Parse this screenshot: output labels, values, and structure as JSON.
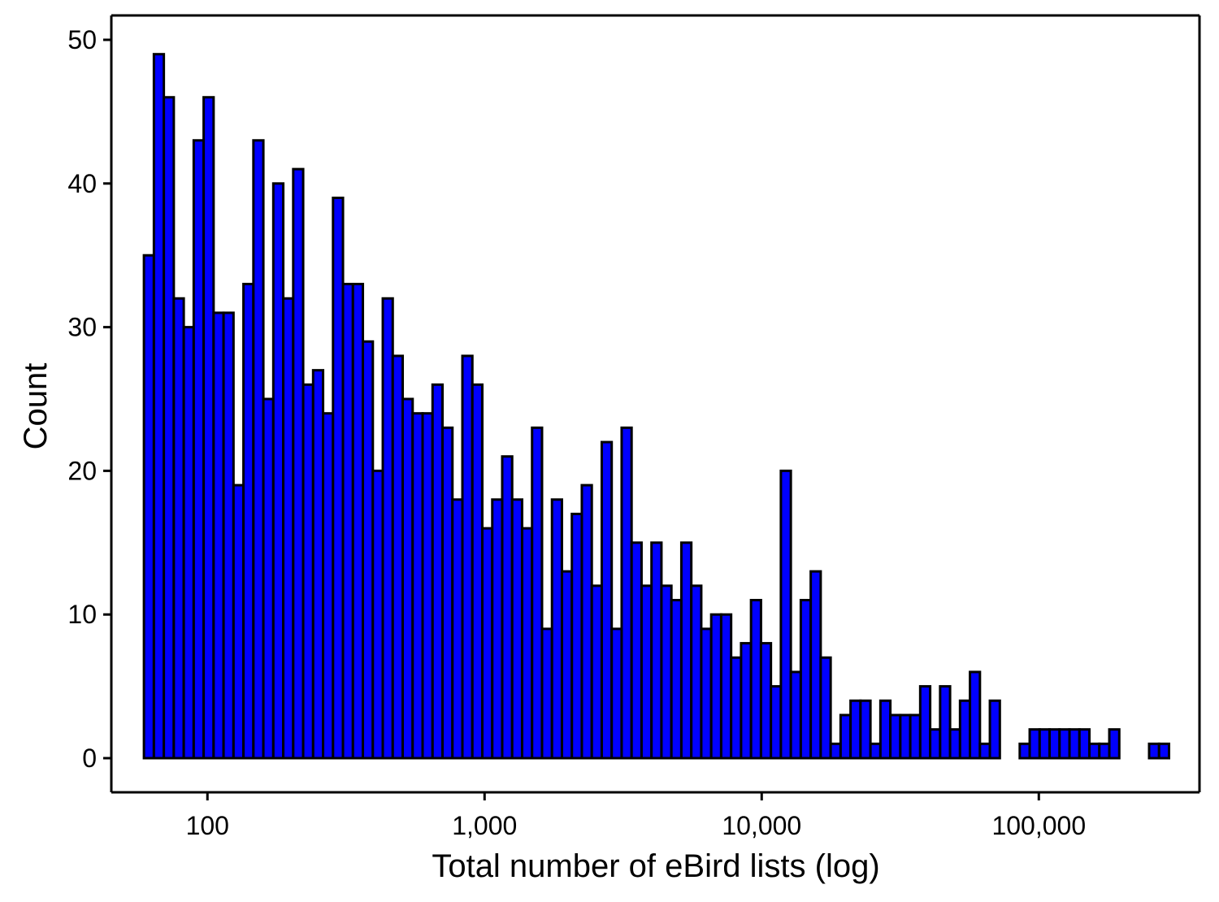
{
  "chart_data": {
    "type": "bar",
    "title": "",
    "xlabel": "Total number of eBird lists (log)",
    "ylabel": "Count",
    "x_scale": "log10",
    "xlim": [
      45,
      380000
    ],
    "ylim": [
      0,
      52
    ],
    "grid": false,
    "legend": "none",
    "x_ticks": [
      100,
      1000,
      10000,
      100000
    ],
    "x_tick_labels": [
      "100",
      "1,000",
      "10,000",
      "100,000"
    ],
    "y_ticks": [
      0,
      10,
      20,
      30,
      40,
      50
    ],
    "y_tick_labels": [
      "0",
      "10",
      "20",
      "30",
      "40",
      "50"
    ],
    "bin_range": [
      59,
      295000
    ],
    "counts": [
      35,
      49,
      46,
      32,
      30,
      43,
      46,
      31,
      31,
      19,
      33,
      43,
      25,
      40,
      32,
      41,
      26,
      27,
      24,
      39,
      33,
      33,
      29,
      20,
      32,
      28,
      25,
      24,
      24,
      26,
      23,
      18,
      28,
      26,
      16,
      18,
      21,
      18,
      16,
      23,
      9,
      18,
      13,
      17,
      19,
      12,
      22,
      9,
      23,
      15,
      12,
      15,
      12,
      11,
      15,
      12,
      9,
      10,
      10,
      7,
      8,
      11,
      8,
      5,
      20,
      6,
      11,
      13,
      7,
      1,
      3,
      4,
      4,
      1,
      4,
      3,
      3,
      3,
      5,
      2,
      5,
      2,
      4,
      6,
      1,
      4,
      0,
      0,
      1,
      2,
      2,
      2,
      2,
      2,
      2,
      1,
      1,
      2,
      0,
      0,
      0,
      1,
      1
    ]
  },
  "colors": {
    "bar_fill": "#0000ff",
    "bar_stroke": "#000000",
    "axis": "#000000",
    "background": "#ffffff"
  }
}
